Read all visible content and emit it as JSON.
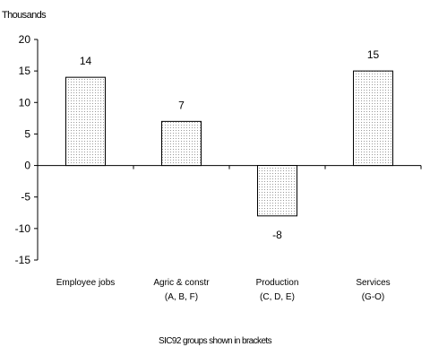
{
  "chart_data": {
    "type": "bar",
    "ylabel": "Thousands",
    "ylim": [
      -15,
      20
    ],
    "yticks": [
      20,
      15,
      10,
      5,
      0,
      -5,
      -10,
      -15
    ],
    "categories": [
      {
        "line1": "Employee jobs",
        "line2": ""
      },
      {
        "line1": "Agric & constr",
        "line2": "(A, B, F)"
      },
      {
        "line1": "Production",
        "line2": "(C, D, E)"
      },
      {
        "line1": "Services",
        "line2": "(G-O)"
      }
    ],
    "values": [
      14,
      7,
      -8,
      15
    ],
    "data_labels": [
      "14",
      "7",
      "-8",
      "15"
    ],
    "footnote": "SIC92 groups shown in brackets",
    "grid": false,
    "bar_fill": "dotted light grey"
  }
}
